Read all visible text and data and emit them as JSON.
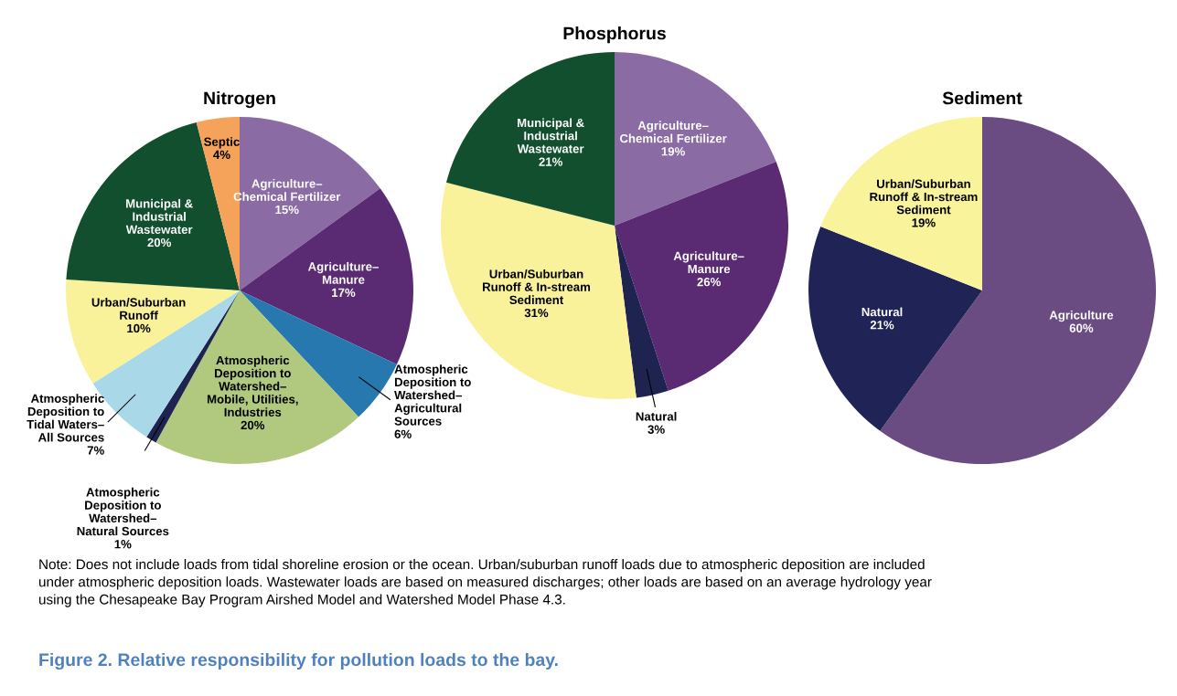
{
  "chart_data": [
    {
      "type": "pie",
      "title": "Nitrogen",
      "categories": [
        "Agriculture–\nChemical Fertilizer",
        "Agriculture–\nManure",
        "Atmospheric\nDeposition to\nWatershed–\nAgricultural\nSources",
        "Atmospheric\nDeposition to\nWatershed–\nMobile, Utilities,\nIndustries",
        "Atmospheric\nDeposition to\nWatershed–\nNatural Sources",
        "Atmospheric\nDeposition to\nTidal Waters–\nAll Sources",
        "Urban/Suburban\nRunoff",
        "Municipal &\nIndustrial\nWastewater",
        "Septic"
      ],
      "values": [
        15,
        17,
        6,
        20,
        1,
        7,
        10,
        20,
        4
      ],
      "value_labels": [
        "15%",
        "17%",
        "6%",
        "20%",
        "1%",
        "7%",
        "10%",
        "20%",
        "4%"
      ],
      "colors": [
        "#8b6ba3",
        "#5a2a73",
        "#2878b0",
        "#b1c97e",
        "#1e2350",
        "#a9d8e8",
        "#f9f29a",
        "#124f2e",
        "#f5a25a"
      ],
      "annotations": [
        "Note: Does not include loads from tidal shoreline erosion or the ocean. Urban/suburban runoff loads due to atmospheric deposition are included\nunder atmospheric deposition loads. Wastewater loads are based on measured discharges; other loads are based on an average hydrology year\nusing the Chesapeake Bay Program Airshed Model and Watershed Model Phase 4.3.",
        "Figure 2. Relative responsibility for pollution loads to the bay."
      ]
    },
    {
      "type": "pie",
      "title": "Phosphorus",
      "categories": [
        "Agriculture–\nChemical Fertilizer",
        "Agriculture–\nManure",
        "Natural",
        "Urban/Suburban\nRunoff & In-stream\nSediment",
        "Municipal &\nIndustrial\nWastewater"
      ],
      "values": [
        19,
        26,
        3,
        31,
        21
      ],
      "value_labels": [
        "19%",
        "26%",
        "3%",
        "31%",
        "21%"
      ],
      "colors": [
        "#8b6ba3",
        "#5a2a73",
        "#1e2350",
        "#f9f29a",
        "#124f2e"
      ]
    },
    {
      "type": "pie",
      "title": "Sediment",
      "categories": [
        "Agriculture",
        "Natural",
        "Urban/Suburban\nRunoff & In-stream\nSediment"
      ],
      "values": [
        60,
        21,
        19
      ],
      "value_labels": [
        "60%",
        "21%",
        "19%"
      ],
      "colors": [
        "#6a4c82",
        "#1f2355",
        "#f9f49c"
      ]
    }
  ]
}
